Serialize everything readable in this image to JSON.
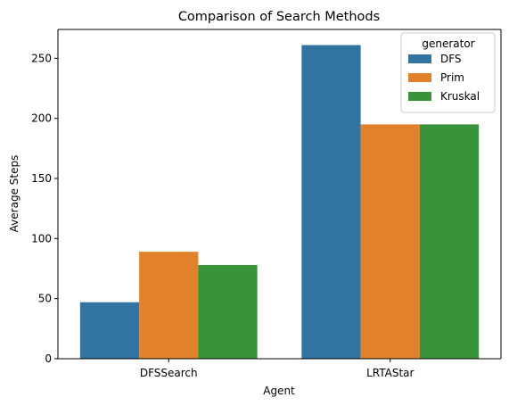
{
  "chart_data": {
    "type": "bar",
    "title": "Comparison of Search Methods",
    "xlabel": "Agent",
    "ylabel": "Average Steps",
    "categories": [
      "DFSSearch",
      "LRTAStar"
    ],
    "series": [
      {
        "name": "DFS",
        "values": [
          47,
          261
        ],
        "color": "#3274a1"
      },
      {
        "name": "Prim",
        "values": [
          89,
          195
        ],
        "color": "#e1812c"
      },
      {
        "name": "Kruskal",
        "values": [
          78,
          195
        ],
        "color": "#3a923a"
      }
    ],
    "ylim": [
      0,
      274
    ],
    "yticks": [
      0,
      50,
      100,
      150,
      200,
      250
    ],
    "legend": {
      "title": "generator",
      "placement": "top-right"
    },
    "grid": false
  }
}
